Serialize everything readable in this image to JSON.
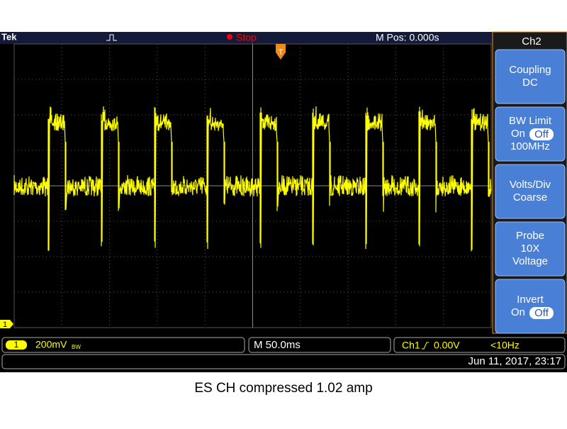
{
  "header": {
    "brand": "Tek",
    "status": "Stop",
    "mpos": "M Pos: 0.000s"
  },
  "menu": {
    "title": "Ch2",
    "buttons": [
      {
        "label": "Coupling",
        "value": "DC"
      },
      {
        "label": "BW Limit",
        "on": "On",
        "off": "Off",
        "value": "100MHz"
      },
      {
        "label": "Volts/Div",
        "value": "Coarse"
      },
      {
        "label": "Probe",
        "value": "10X",
        "extra": "Voltage"
      },
      {
        "label": "Invert",
        "on": "On",
        "off": "Off"
      }
    ]
  },
  "status_bar": {
    "channel": "1",
    "scale": "200mV",
    "bw": "BW",
    "timebase": "M 50.0ms",
    "trigger_source": "Ch1",
    "trigger_level": "0.00V",
    "frequency": "<10Hz",
    "datetime": "Jun 11, 2017, 23:17"
  },
  "ground_marker": "1",
  "trigger_marker": "T",
  "caption": "ES CH compressed 1.02 amp"
}
